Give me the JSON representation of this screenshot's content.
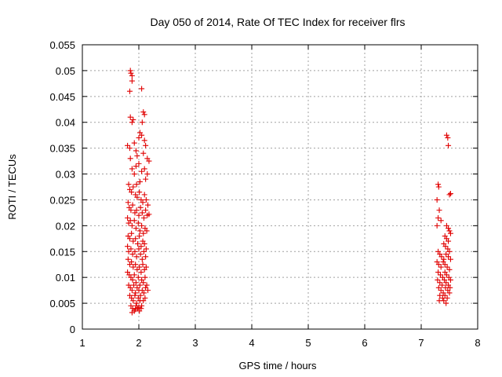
{
  "chart_data": {
    "type": "scatter",
    "title": "Day 050 of 2014, Rate Of TEC Index for receiver flrs",
    "xlabel": "GPS time / hours",
    "ylabel": "ROTI / TECUs",
    "xlim": [
      1,
      8
    ],
    "ylim": [
      0,
      0.055
    ],
    "x_ticks": [
      1,
      2,
      3,
      4,
      5,
      6,
      7,
      8
    ],
    "y_ticks": [
      0,
      0.005,
      0.01,
      0.015,
      0.02,
      0.025,
      0.03,
      0.035,
      0.04,
      0.045,
      0.05,
      0.055
    ],
    "x_tick_labels": [
      "1",
      "2",
      "3",
      "4",
      "5",
      "6",
      "7",
      "8"
    ],
    "y_tick_labels": [
      "0",
      "0.005",
      "0.01",
      "0.015",
      "0.02",
      "0.025",
      "0.03",
      "0.035",
      "0.04",
      "0.045",
      "0.05",
      "0.055"
    ],
    "grid": true,
    "marker": "+",
    "marker_color": "#e00000",
    "series": [
      {
        "name": "flrs",
        "points": [
          [
            1.85,
            0.05
          ],
          [
            1.86,
            0.0495
          ],
          [
            1.88,
            0.049
          ],
          [
            1.84,
            0.046
          ],
          [
            1.88,
            0.048
          ],
          [
            2.05,
            0.0465
          ],
          [
            1.85,
            0.041
          ],
          [
            1.88,
            0.04
          ],
          [
            1.9,
            0.0405
          ],
          [
            2.08,
            0.042
          ],
          [
            2.1,
            0.0415
          ],
          [
            2.06,
            0.04
          ],
          [
            1.8,
            0.0355
          ],
          [
            1.84,
            0.035
          ],
          [
            1.92,
            0.036
          ],
          [
            1.95,
            0.0345
          ],
          [
            2.0,
            0.037
          ],
          [
            2.02,
            0.038
          ],
          [
            2.05,
            0.0375
          ],
          [
            2.1,
            0.0365
          ],
          [
            2.12,
            0.0355
          ],
          [
            2.08,
            0.034
          ],
          [
            2.15,
            0.033
          ],
          [
            1.97,
            0.0335
          ],
          [
            1.85,
            0.033
          ],
          [
            1.88,
            0.031
          ],
          [
            1.92,
            0.03
          ],
          [
            1.95,
            0.0315
          ],
          [
            2.0,
            0.032
          ],
          [
            2.05,
            0.0305
          ],
          [
            2.1,
            0.031
          ],
          [
            2.15,
            0.03
          ],
          [
            2.18,
            0.0325
          ],
          [
            2.12,
            0.029
          ],
          [
            2.02,
            0.0285
          ],
          [
            1.96,
            0.028
          ],
          [
            1.82,
            0.028
          ],
          [
            1.84,
            0.027
          ],
          [
            1.87,
            0.0265
          ],
          [
            1.9,
            0.0275
          ],
          [
            1.94,
            0.026
          ],
          [
            1.97,
            0.0255
          ],
          [
            2.01,
            0.0265
          ],
          [
            2.04,
            0.025
          ],
          [
            2.07,
            0.0245
          ],
          [
            2.1,
            0.026
          ],
          [
            2.13,
            0.025
          ],
          [
            2.16,
            0.024
          ],
          [
            1.81,
            0.0245
          ],
          [
            1.83,
            0.0235
          ],
          [
            1.86,
            0.023
          ],
          [
            1.89,
            0.024
          ],
          [
            1.93,
            0.0225
          ],
          [
            1.96,
            0.023
          ],
          [
            2.0,
            0.022
          ],
          [
            2.03,
            0.0235
          ],
          [
            2.06,
            0.0225
          ],
          [
            2.09,
            0.0215
          ],
          [
            2.12,
            0.023
          ],
          [
            2.15,
            0.022
          ],
          [
            2.18,
            0.0222
          ],
          [
            1.8,
            0.0215
          ],
          [
            1.82,
            0.0205
          ],
          [
            1.85,
            0.021
          ],
          [
            1.88,
            0.02
          ],
          [
            1.92,
            0.021
          ],
          [
            1.95,
            0.0195
          ],
          [
            1.99,
            0.0205
          ],
          [
            2.02,
            0.019
          ],
          [
            2.05,
            0.02
          ],
          [
            2.08,
            0.0185
          ],
          [
            2.11,
            0.0195
          ],
          [
            2.14,
            0.019
          ],
          [
            1.81,
            0.018
          ],
          [
            1.84,
            0.0175
          ],
          [
            1.87,
            0.0185
          ],
          [
            1.9,
            0.017
          ],
          [
            1.94,
            0.0175
          ],
          [
            1.98,
            0.0165
          ],
          [
            2.01,
            0.018
          ],
          [
            2.04,
            0.016
          ],
          [
            2.07,
            0.017
          ],
          [
            2.1,
            0.0165
          ],
          [
            2.13,
            0.0155
          ],
          [
            1.8,
            0.016
          ],
          [
            1.82,
            0.015
          ],
          [
            1.86,
            0.0155
          ],
          [
            1.89,
            0.0145
          ],
          [
            1.93,
            0.015
          ],
          [
            1.96,
            0.014
          ],
          [
            2.0,
            0.0155
          ],
          [
            2.03,
            0.0145
          ],
          [
            2.06,
            0.0135
          ],
          [
            2.09,
            0.015
          ],
          [
            2.12,
            0.014
          ],
          [
            1.81,
            0.0135
          ],
          [
            1.84,
            0.0125
          ],
          [
            1.87,
            0.013
          ],
          [
            1.9,
            0.012
          ],
          [
            1.94,
            0.0125
          ],
          [
            1.97,
            0.0115
          ],
          [
            2.01,
            0.012
          ],
          [
            2.04,
            0.011
          ],
          [
            2.07,
            0.0125
          ],
          [
            2.1,
            0.0115
          ],
          [
            2.13,
            0.012
          ],
          [
            1.8,
            0.011
          ],
          [
            1.83,
            0.0105
          ],
          [
            1.86,
            0.01
          ],
          [
            1.89,
            0.0095
          ],
          [
            1.92,
            0.0105
          ],
          [
            1.95,
            0.009
          ],
          [
            1.99,
            0.01
          ],
          [
            2.02,
            0.0085
          ],
          [
            2.05,
            0.0095
          ],
          [
            2.08,
            0.009
          ],
          [
            2.11,
            0.01
          ],
          [
            2.14,
            0.0085
          ],
          [
            1.82,
            0.0085
          ],
          [
            1.85,
            0.008
          ],
          [
            1.88,
            0.0075
          ],
          [
            1.91,
            0.0085
          ],
          [
            1.94,
            0.007
          ],
          [
            1.97,
            0.008
          ],
          [
            2.0,
            0.0075
          ],
          [
            2.03,
            0.0065
          ],
          [
            2.06,
            0.0075
          ],
          [
            2.09,
            0.007
          ],
          [
            2.12,
            0.008
          ],
          [
            2.16,
            0.0075
          ],
          [
            1.84,
            0.0065
          ],
          [
            1.87,
            0.006
          ],
          [
            1.9,
            0.0055
          ],
          [
            1.93,
            0.0065
          ],
          [
            1.96,
            0.005
          ],
          [
            1.99,
            0.006
          ],
          [
            2.02,
            0.0055
          ],
          [
            2.05,
            0.0045
          ],
          [
            2.08,
            0.0055
          ],
          [
            2.11,
            0.006
          ],
          [
            1.86,
            0.0045
          ],
          [
            1.89,
            0.004
          ],
          [
            1.92,
            0.0035
          ],
          [
            1.95,
            0.0045
          ],
          [
            1.98,
            0.004
          ],
          [
            2.01,
            0.0035
          ],
          [
            2.04,
            0.004
          ],
          [
            1.88,
            0.0032
          ],
          [
            1.94,
            0.0038
          ],
          [
            2.0,
            0.0042
          ],
          [
            7.45,
            0.0375
          ],
          [
            7.47,
            0.037
          ],
          [
            7.48,
            0.0355
          ],
          [
            7.3,
            0.028
          ],
          [
            7.31,
            0.0275
          ],
          [
            7.5,
            0.026
          ],
          [
            7.52,
            0.0262
          ],
          [
            7.28,
            0.025
          ],
          [
            7.32,
            0.023
          ],
          [
            7.3,
            0.0215
          ],
          [
            7.28,
            0.02
          ],
          [
            7.35,
            0.021
          ],
          [
            7.45,
            0.02
          ],
          [
            7.48,
            0.0195
          ],
          [
            7.5,
            0.019
          ],
          [
            7.52,
            0.0185
          ],
          [
            7.42,
            0.018
          ],
          [
            7.45,
            0.0175
          ],
          [
            7.48,
            0.017
          ],
          [
            7.4,
            0.0165
          ],
          [
            7.43,
            0.016
          ],
          [
            7.47,
            0.0155
          ],
          [
            7.5,
            0.015
          ],
          [
            7.3,
            0.015
          ],
          [
            7.33,
            0.0145
          ],
          [
            7.36,
            0.014
          ],
          [
            7.4,
            0.0135
          ],
          [
            7.44,
            0.0145
          ],
          [
            7.48,
            0.014
          ],
          [
            7.52,
            0.0135
          ],
          [
            7.28,
            0.013
          ],
          [
            7.31,
            0.0125
          ],
          [
            7.35,
            0.012
          ],
          [
            7.39,
            0.013
          ],
          [
            7.42,
            0.0125
          ],
          [
            7.46,
            0.012
          ],
          [
            7.5,
            0.0115
          ],
          [
            7.3,
            0.011
          ],
          [
            7.34,
            0.0105
          ],
          [
            7.38,
            0.01
          ],
          [
            7.42,
            0.011
          ],
          [
            7.45,
            0.0105
          ],
          [
            7.49,
            0.01
          ],
          [
            7.52,
            0.0095
          ],
          [
            7.29,
            0.0095
          ],
          [
            7.33,
            0.009
          ],
          [
            7.37,
            0.0085
          ],
          [
            7.41,
            0.0095
          ],
          [
            7.44,
            0.009
          ],
          [
            7.48,
            0.0085
          ],
          [
            7.51,
            0.008
          ],
          [
            7.31,
            0.008
          ],
          [
            7.35,
            0.0075
          ],
          [
            7.39,
            0.007
          ],
          [
            7.43,
            0.008
          ],
          [
            7.47,
            0.0075
          ],
          [
            7.5,
            0.007
          ],
          [
            7.33,
            0.0065
          ],
          [
            7.38,
            0.006
          ],
          [
            7.42,
            0.0065
          ],
          [
            7.46,
            0.006
          ],
          [
            7.32,
            0.0055
          ],
          [
            7.4,
            0.0055
          ],
          [
            7.44,
            0.005
          ]
        ]
      }
    ]
  }
}
